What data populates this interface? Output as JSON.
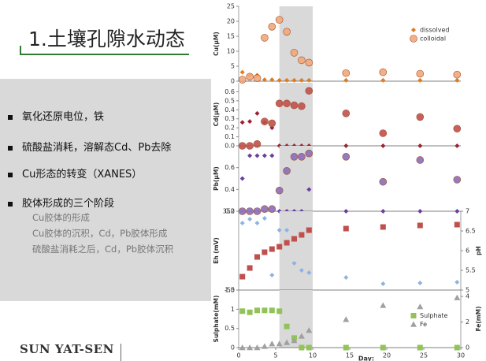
{
  "header": {
    "title": "1.土壤孔隙水动态"
  },
  "bullets": [
    "氧化还原电位，铁",
    "硫酸盐消耗，溶解态Cd、Pb去除",
    "Cu形态的转变（XANES）",
    "胶体形成的三个阶段"
  ],
  "sub_bullets": [
    "Cu胶体的形成",
    "Cu胶体的沉积，Cd，Pb胶体形成",
    "硫酸盐消耗之后，Cd，Pb胶体沉积"
  ],
  "footer": {
    "text": "SUN YAT-SEN"
  },
  "chart_data": [
    {
      "type": "scatter",
      "ylabel": "Cu(μM)",
      "xlim": [
        0,
        30
      ],
      "shade": [
        5.5,
        10
      ],
      "x": [
        0.5,
        1.5,
        2.5,
        3.5,
        4.5,
        5.5,
        6.5,
        7.5,
        8.5,
        9.5,
        14.5,
        19.5,
        24.5,
        29.5
      ],
      "ylim": [
        0,
        25
      ],
      "yticks": [
        0,
        5,
        10,
        15,
        20,
        25
      ],
      "legend": "upper right",
      "series": [
        {
          "name": "dissolved",
          "color": "#e07b20",
          "marker": "diamond",
          "values": [
            3,
            2,
            2,
            0.5,
            0.5,
            0.3,
            0.3,
            0.3,
            0.3,
            0.3,
            0.3,
            0.3,
            0.3,
            0.3
          ]
        },
        {
          "name": "colloidal",
          "color": "#f2a679",
          "marker": "circle",
          "values": [
            0.5,
            1.5,
            1,
            14.5,
            18.2,
            20.5,
            16.5,
            9.5,
            7,
            6.2,
            2.7,
            3,
            2.5,
            2.2
          ]
        }
      ]
    },
    {
      "type": "scatter",
      "ylabel": "Cd(μM)",
      "xlim": [
        0,
        30
      ],
      "shade": [
        5.5,
        10
      ],
      "x": [
        0.5,
        1.5,
        2.5,
        3.5,
        4.5,
        5.5,
        6.5,
        7.5,
        8.5,
        9.5,
        14.5,
        19.5,
        24.5,
        29.5
      ],
      "ylim": [
        0,
        0.7
      ],
      "yticks": [
        {
          "value": 0,
          "label": "0.0"
        },
        0.1,
        0.2,
        0.3,
        0.4,
        0.5,
        0.6
      ],
      "series": [
        {
          "color": "#9b2335",
          "marker": "diamond",
          "values": [
            0.26,
            0.27,
            0.36,
            0.26,
            0.2,
            0,
            0,
            0,
            0,
            0,
            0,
            0,
            0,
            0
          ]
        },
        {
          "color": "#c0504d",
          "marker": "circle",
          "values": [
            0,
            0,
            0.02,
            0.27,
            0.25,
            0.47,
            0.47,
            0.45,
            0.44,
            0.61,
            0.36,
            0.14,
            0.32,
            0.19
          ]
        }
      ]
    },
    {
      "type": "scatter",
      "ylabel": "Pb(μM)",
      "xlim": [
        0,
        30
      ],
      "shade": [
        5.5,
        10
      ],
      "x": [
        0.5,
        1.5,
        2.5,
        3.5,
        4.5,
        5.5,
        6.5,
        7.5,
        8.5,
        9.5,
        14.5,
        19.5,
        24.5,
        29.5
      ],
      "ylim": [
        0.2,
        0.8
      ],
      "yticks": [
        0.2,
        0.4,
        0.6
      ],
      "series": [
        {
          "color": "#6b3fa0",
          "marker": "diamond",
          "values": [
            0.5,
            0.71,
            0.71,
            0.71,
            0.71,
            0.2,
            0.2,
            0.2,
            0.2,
            0.4,
            0.2,
            0.2,
            0.2,
            0.2
          ]
        },
        {
          "color": "#8a6bb8",
          "marker": "circle",
          "values": [
            0.2,
            0.2,
            0.2,
            0.22,
            0.22,
            0.39,
            0.57,
            0.7,
            0.7,
            0.73,
            0.7,
            0.47,
            0.67,
            0.49
          ]
        }
      ]
    },
    {
      "type": "scatter",
      "ylabel": "Eh (mV)",
      "y2label": "pH",
      "xlim": [
        0,
        30
      ],
      "shade": [
        5.5,
        10
      ],
      "x": [
        0.5,
        1.5,
        2.5,
        3.5,
        4.5,
        5.5,
        6.5,
        7.5,
        8.5,
        9.5,
        14.5,
        19.5,
        24.5,
        29.5
      ],
      "ylim": [
        -50,
        350
      ],
      "yticks": [
        -50,
        350
      ],
      "y2lim": [
        5,
        7
      ],
      "y2ticks": [
        5,
        5.5,
        6,
        6.5,
        7
      ],
      "series": [
        {
          "color": "#8db3e2",
          "marker": "diamond",
          "values": [
            290,
            310,
            290,
            314,
            26,
            254,
            254,
            86,
            50,
            38,
            14,
            -18,
            -14,
            -10
          ]
        },
        {
          "color": "#c0504d",
          "marker": "square",
          "axis": "y2",
          "values": [
            5.34,
            5.56,
            5.84,
            5.96,
            6.04,
            6.1,
            6.2,
            6.3,
            6.4,
            6.52,
            6.56,
            6.6,
            6.64,
            6.66
          ]
        }
      ]
    },
    {
      "type": "scatter",
      "ylabel": "Sulphate(mM)",
      "y2label": "Fe(mM)",
      "xlabel": "Day:",
      "xlim": [
        0,
        30
      ],
      "shade": [
        5.5,
        10
      ],
      "xticks": [
        0,
        5,
        10,
        15,
        20,
        25,
        30
      ],
      "x": [
        0.5,
        1.5,
        2.5,
        3.5,
        4.5,
        5.5,
        6.5,
        7.5,
        8.5,
        9.5,
        14.5,
        19.5,
        24.5,
        29.5
      ],
      "ylim": [
        0,
        1.5
      ],
      "yticks": [
        0,
        0.5,
        1,
        1.5
      ],
      "y2lim": [
        0,
        4.5
      ],
      "y2ticks": [
        0,
        2,
        4
      ],
      "legend": "center right",
      "series": [
        {
          "name": "Sulphate",
          "color": "#92c35a",
          "marker": "square",
          "values": [
            0.95,
            0.92,
            0.97,
            0.97,
            0.97,
            0.95,
            0.55,
            0.25,
            0,
            0,
            0,
            0,
            0,
            0
          ]
        },
        {
          "name": "Fe",
          "color": "#a0a0a0",
          "marker": "triangle",
          "axis": "y2",
          "values": [
            0,
            0,
            0,
            0.1,
            0.3,
            0.3,
            0.4,
            0.55,
            0.9,
            1.35,
            2.2,
            3.3,
            3.2,
            3.9
          ]
        }
      ]
    }
  ]
}
